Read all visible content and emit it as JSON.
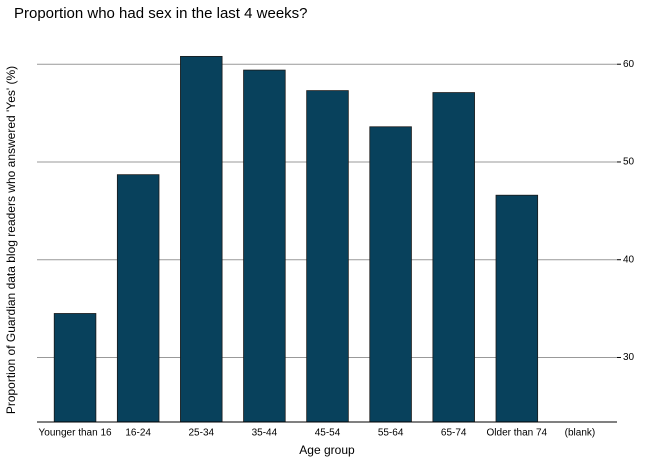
{
  "chart_data": {
    "type": "bar",
    "title": "Proportion who had sex in the last 4 weeks?",
    "x_label": "Age group",
    "y_label": "Proportion of Guardian data blog readers who answered 'Yes' (%)",
    "categories": [
      "Younger than 16",
      "16-24",
      "25-34",
      "35-44",
      "45-54",
      "55-64",
      "65-74",
      "Older than 74",
      "(blank)"
    ],
    "values": [
      34.5,
      48.7,
      60.8,
      59.4,
      57.3,
      53.6,
      57.1,
      46.6,
      null
    ],
    "color": "#08415c",
    "ylim": [
      23.4,
      63.5
    ],
    "yticks": [
      30,
      40,
      50,
      60
    ],
    "grid": true,
    "y_axis_side": "right"
  }
}
